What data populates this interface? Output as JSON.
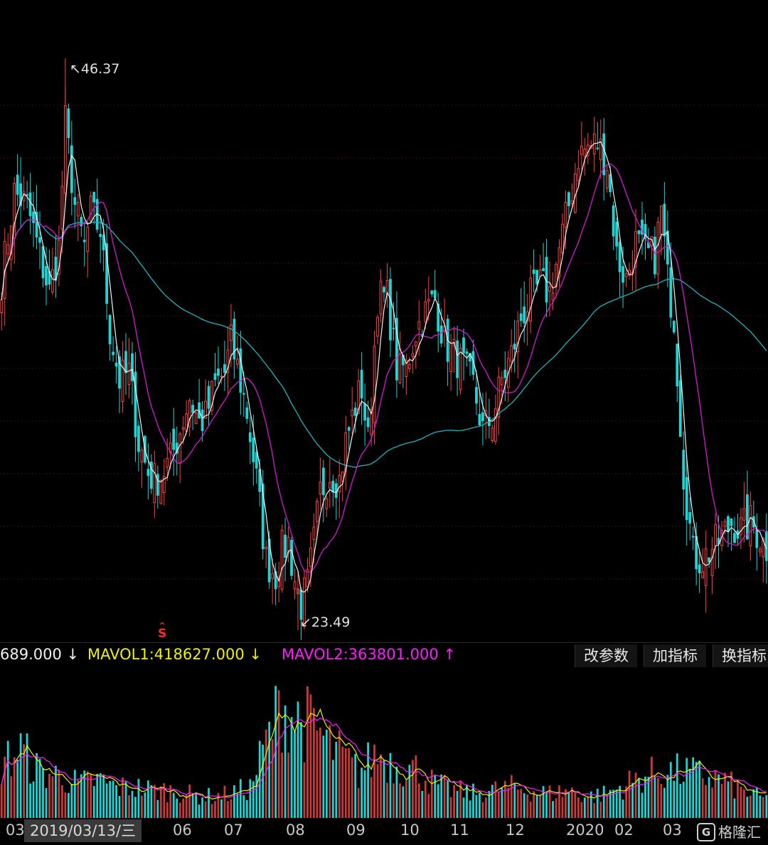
{
  "colors": {
    "up": "#ff4040",
    "up_fill": "#000000",
    "down": "#21d4d4",
    "ma_short": "#f0f0f0",
    "ma_mid": "#d21ad2",
    "ma_long": "#1bb5c0",
    "mavol1": "#f0f000",
    "mavol2": "#ff1aff",
    "grid": "#3a1010"
  },
  "price_panel": {
    "high_label": "46.37",
    "low_label": "23.49",
    "high_arrow": "↖",
    "low_arrow": "↙",
    "signal_text": "S"
  },
  "indicator": {
    "vol_text": "689.000 ↓",
    "mavol1_text": "MAVOL1:418627.000 ↓",
    "mavol2_text": "MAVOL2:363801.000 ↑",
    "buttons": [
      "改参数",
      "加指标",
      "换指标"
    ]
  },
  "x_axis": {
    "ticks": [
      "03",
      "06",
      "07",
      "08",
      "09",
      "10",
      "11",
      "12",
      "2020",
      "02",
      "03"
    ],
    "crosshair_date": "2019/03/13/三"
  },
  "watermark": {
    "logo": "G",
    "text": "格隆汇"
  },
  "chart_data": [
    {
      "type": "candlestick",
      "x_range": [
        "2019-03",
        "2020-03"
      ],
      "y_range": [
        23.49,
        46.37
      ],
      "grid": true,
      "anchors_close": [
        [
          0,
          37.5
        ],
        [
          4,
          41.0
        ],
        [
          8,
          40.5
        ],
        [
          12,
          38.5
        ],
        [
          15,
          37.0
        ],
        [
          18,
          38.8
        ],
        [
          20,
          43.8
        ],
        [
          23,
          40.5
        ],
        [
          26,
          38.8
        ],
        [
          28,
          40.2
        ],
        [
          31,
          39.5
        ],
        [
          34,
          35.5
        ],
        [
          37,
          33.5
        ],
        [
          40,
          33.8
        ],
        [
          43,
          31.0
        ],
        [
          46,
          29.8
        ],
        [
          48,
          29.5
        ],
        [
          50,
          29.7
        ],
        [
          53,
          30.3
        ],
        [
          56,
          31.5
        ],
        [
          59,
          32.8
        ],
        [
          62,
          31.8
        ],
        [
          64,
          32.0
        ],
        [
          67,
          33.3
        ],
        [
          70,
          33.8
        ],
        [
          72,
          35.0
        ],
        [
          74,
          34.0
        ],
        [
          77,
          32.2
        ],
        [
          80,
          29.5
        ],
        [
          83,
          26.3
        ],
        [
          86,
          25.7
        ],
        [
          88,
          26.7
        ],
        [
          90,
          27.0
        ],
        [
          92,
          25.5
        ],
        [
          94,
          24.5
        ],
        [
          96,
          25.3
        ],
        [
          98,
          27.0
        ],
        [
          100,
          29.0
        ],
        [
          103,
          29.8
        ],
        [
          106,
          29.5
        ],
        [
          108,
          31.0
        ],
        [
          111,
          32.5
        ],
        [
          113,
          33.2
        ],
        [
          115,
          31.0
        ],
        [
          118,
          36.8
        ],
        [
          121,
          36.8
        ],
        [
          124,
          34.0
        ],
        [
          127,
          34.0
        ],
        [
          130,
          35.5
        ],
        [
          133,
          36.2
        ],
        [
          136,
          36.8
        ],
        [
          139,
          35.0
        ],
        [
          142,
          34.5
        ],
        [
          145,
          34.0
        ],
        [
          148,
          33.3
        ],
        [
          151,
          31.5
        ],
        [
          154,
          32.0
        ],
        [
          157,
          33.5
        ],
        [
          160,
          34.5
        ],
        [
          163,
          36.0
        ],
        [
          166,
          36.8
        ],
        [
          169,
          37.3
        ],
        [
          172,
          37.0
        ],
        [
          175,
          38.7
        ],
        [
          178,
          40.5
        ],
        [
          181,
          42.5
        ],
        [
          184,
          42.8
        ],
        [
          187,
          43.0
        ],
        [
          190,
          42.2
        ],
        [
          193,
          38.5
        ],
        [
          196,
          37.5
        ],
        [
          199,
          39.0
        ],
        [
          202,
          38.5
        ],
        [
          205,
          38.5
        ],
        [
          207,
          40.3
        ],
        [
          209,
          37.5
        ],
        [
          211,
          36.0
        ],
        [
          214,
          29.8
        ],
        [
          217,
          26.5
        ],
        [
          220,
          26.3
        ],
        [
          223,
          26.8
        ],
        [
          226,
          27.2
        ],
        [
          229,
          27.8
        ],
        [
          232,
          27.5
        ],
        [
          235,
          27.8
        ],
        [
          238,
          27.2
        ],
        [
          240,
          26.8
        ]
      ],
      "ma_short": "moving average (white)",
      "ma_mid": "moving average (magenta)",
      "ma_long": "moving average (cyan)",
      "annotations": [
        {
          "text": "46.37",
          "kind": "period high"
        },
        {
          "text": "23.49",
          "kind": "period low"
        }
      ]
    },
    {
      "type": "bar",
      "name": "VOL",
      "series": [
        {
          "name": "MAVOL1",
          "last": 418627.0
        },
        {
          "name": "MAVOL2",
          "last": 363801.0
        }
      ],
      "volume_profile_rel": [
        [
          0,
          0.35
        ],
        [
          6,
          0.45
        ],
        [
          12,
          0.3
        ],
        [
          18,
          0.28
        ],
        [
          24,
          0.22
        ],
        [
          30,
          0.25
        ],
        [
          36,
          0.2
        ],
        [
          42,
          0.2
        ],
        [
          48,
          0.18
        ],
        [
          54,
          0.18
        ],
        [
          60,
          0.15
        ],
        [
          66,
          0.14
        ],
        [
          72,
          0.16
        ],
        [
          78,
          0.2
        ],
        [
          84,
          0.55
        ],
        [
          88,
          0.75
        ],
        [
          92,
          0.65
        ],
        [
          96,
          0.62
        ],
        [
          100,
          0.55
        ],
        [
          104,
          0.45
        ],
        [
          108,
          0.38
        ],
        [
          112,
          0.3
        ],
        [
          118,
          0.42
        ],
        [
          124,
          0.35
        ],
        [
          130,
          0.32
        ],
        [
          136,
          0.22
        ],
        [
          142,
          0.18
        ],
        [
          148,
          0.16
        ],
        [
          154,
          0.18
        ],
        [
          160,
          0.2
        ],
        [
          166,
          0.18
        ],
        [
          172,
          0.16
        ],
        [
          178,
          0.18
        ],
        [
          184,
          0.14
        ],
        [
          190,
          0.16
        ],
        [
          196,
          0.22
        ],
        [
          202,
          0.28
        ],
        [
          208,
          0.3
        ],
        [
          214,
          0.3
        ],
        [
          220,
          0.28
        ],
        [
          226,
          0.25
        ],
        [
          232,
          0.18
        ],
        [
          240,
          0.12
        ]
      ]
    }
  ]
}
